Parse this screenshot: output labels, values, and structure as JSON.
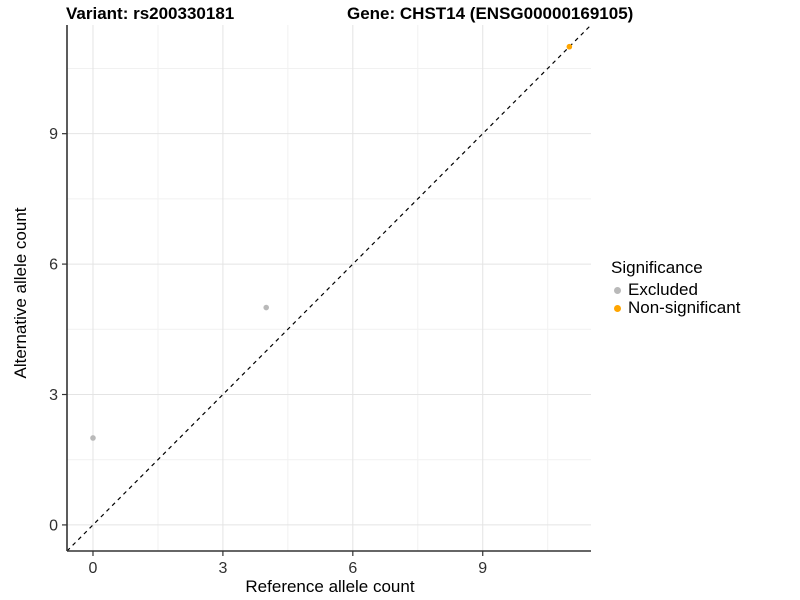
{
  "header": {
    "left_title": "Variant: rs200330181",
    "right_title": "Gene: CHST14 (ENSG00000169105)"
  },
  "chart_data": {
    "type": "scatter",
    "xlabel": "Reference allele count",
    "ylabel": "Alternative allele count",
    "x_ticks": [
      0,
      3,
      6,
      9
    ],
    "y_ticks": [
      0,
      3,
      6,
      9
    ],
    "x_minor_ticks": [
      1.5,
      4.5,
      7.5,
      10.5
    ],
    "y_minor_ticks": [
      1.5,
      4.5,
      7.5,
      10.5
    ],
    "xlim": [
      -0.6,
      11.5
    ],
    "ylim": [
      -0.6,
      11.5
    ],
    "grid": true,
    "identity_line": {
      "slope": 1,
      "intercept": 0,
      "style": "dashed",
      "color": "#000000"
    },
    "points": [
      {
        "x": 0,
        "y": 2,
        "significance": "Excluded"
      },
      {
        "x": 4,
        "y": 5,
        "significance": "Excluded"
      },
      {
        "x": 11,
        "y": 11,
        "significance": "Non-significant"
      }
    ],
    "colors": {
      "Excluded": "#b9b9b9",
      "Non-significant": "#ffa500"
    },
    "legend": {
      "title": "Significance",
      "position": "right",
      "entries": [
        {
          "label": "Excluded",
          "color": "#b9b9b9"
        },
        {
          "label": "Non-significant",
          "color": "#ffa500"
        }
      ]
    },
    "style": {
      "major_grid_color": "#e4e4e4",
      "minor_grid_color": "#f1f1f1",
      "axis_line_color": "#333333",
      "tick_label_color": "#303030",
      "point_radius": 2.8
    }
  }
}
